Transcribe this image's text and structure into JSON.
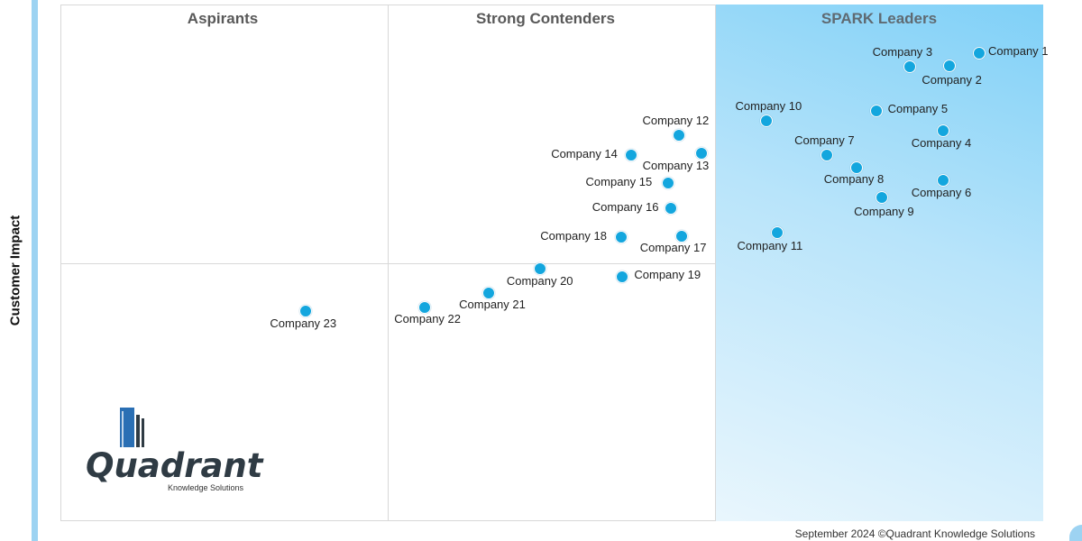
{
  "chart_data": {
    "type": "scatter",
    "ylabel": "Customer Impact",
    "quadrants": [
      "Aspirants",
      "Strong Contenders",
      "SPARK Leaders"
    ],
    "points": [
      {
        "name": "Company 1",
        "x": 9.34,
        "y": 9.08
      },
      {
        "name": "Company 2",
        "x": 9.04,
        "y": 8.83
      },
      {
        "name": "Company 3",
        "x": 8.63,
        "y": 8.81
      },
      {
        "name": "Company 4",
        "x": 8.97,
        "y": 7.57
      },
      {
        "name": "Company 5",
        "x": 8.29,
        "y": 7.95
      },
      {
        "name": "Company 6",
        "x": 8.97,
        "y": 6.61
      },
      {
        "name": "Company 7",
        "x": 7.79,
        "y": 7.11
      },
      {
        "name": "Company 8",
        "x": 8.09,
        "y": 6.86
      },
      {
        "name": "Company 9",
        "x": 8.35,
        "y": 6.28
      },
      {
        "name": "Company 10",
        "x": 7.17,
        "y": 7.77
      },
      {
        "name": "Company 11",
        "x": 7.28,
        "y": 5.61
      },
      {
        "name": "Company 12",
        "x": 6.28,
        "y": 7.49
      },
      {
        "name": "Company 13",
        "x": 6.51,
        "y": 7.13
      },
      {
        "name": "Company 14",
        "x": 5.8,
        "y": 7.1
      },
      {
        "name": "Company 15",
        "x": 6.17,
        "y": 6.56
      },
      {
        "name": "Company 16",
        "x": 6.2,
        "y": 6.07
      },
      {
        "name": "Company 17",
        "x": 6.31,
        "y": 5.54
      },
      {
        "name": "Company 18",
        "x": 5.7,
        "y": 5.51
      },
      {
        "name": "Company 19",
        "x": 5.71,
        "y": 4.74
      },
      {
        "name": "Company 20",
        "x": 4.87,
        "y": 4.9
      },
      {
        "name": "Company 21",
        "x": 4.35,
        "y": 4.43
      },
      {
        "name": "Company 22",
        "x": 3.7,
        "y": 4.16
      },
      {
        "name": "Company 23",
        "x": 2.49,
        "y": 4.09
      }
    ],
    "xlim": [
      0,
      10
    ],
    "ylim": [
      0,
      10
    ]
  },
  "logo": {
    "name": "Quadrant",
    "sub": "Knowledge Solutions"
  },
  "footer": "September 2024 ©Quadrant Knowledge Solutions"
}
